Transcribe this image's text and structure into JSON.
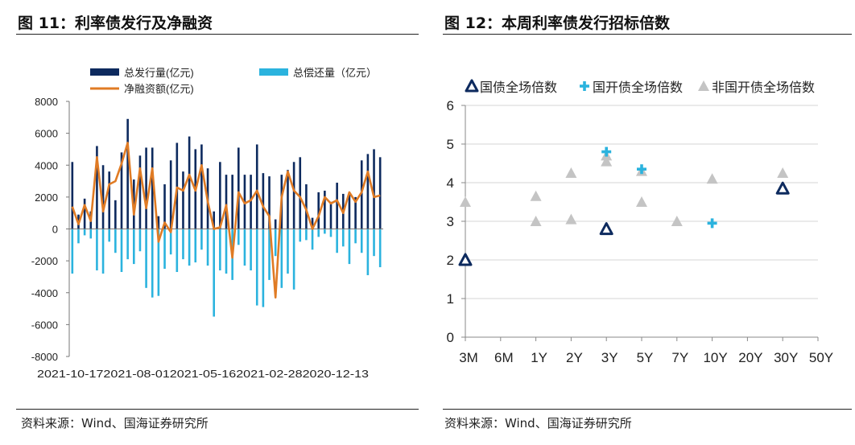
{
  "left": {
    "title": "图 11：利率债发行及净融资",
    "source": "资料来源：Wind、国海证券研究所",
    "chart_data": {
      "type": "bar",
      "ylim": [
        -8000,
        8000
      ],
      "yticks": [
        8000,
        6000,
        4000,
        2000,
        0,
        -2000,
        -4000,
        -6000,
        -8000
      ],
      "x_labels": [
        "2021-10-17",
        "2021-08-01",
        "2021-05-16",
        "2021-02-28",
        "2020-12-13"
      ],
      "series": [
        {
          "name": "总发行量(亿元)",
          "color": "#0d2a5e",
          "kind": "bar",
          "values": [
            4200,
            900,
            1900,
            1100,
            5200,
            4000,
            3600,
            1800,
            4800,
            6900,
            3100,
            4600,
            5100,
            5100,
            800,
            2800,
            4300,
            5400,
            3600,
            5800,
            5000,
            5300,
            3800,
            1100,
            4200,
            3400,
            3400,
            5100,
            3400,
            3400,
            5300,
            3500,
            3300,
            600,
            3400,
            3700,
            4200,
            4500,
            2800,
            700,
            2300,
            2400,
            1700,
            2900,
            2200,
            2300,
            2000,
            4300,
            4700,
            5000,
            4500
          ]
        },
        {
          "name": "总偿还量（亿元）",
          "color": "#2bb3de",
          "kind": "bar",
          "values": [
            -2800,
            -900,
            -400,
            -600,
            -2600,
            -2800,
            -800,
            -1500,
            -2700,
            -1900,
            -2200,
            -1400,
            -3700,
            -4300,
            -4200,
            -2500,
            -1600,
            -2700,
            -1900,
            -2300,
            -2100,
            -1300,
            -2300,
            -5500,
            -2600,
            -2800,
            -3200,
            -1000,
            -2300,
            -2600,
            -4800,
            -4900,
            -3200,
            -1700,
            -3700,
            -2800,
            -3800,
            -800,
            -700,
            -1300,
            -500,
            -300,
            -500,
            -1500,
            -1100,
            -2200,
            -900,
            -1500,
            -2900,
            -1700,
            -2400
          ]
        },
        {
          "name": "净融资额(亿元)",
          "color": "#e07b24",
          "kind": "line",
          "values": [
            1400,
            300,
            1500,
            500,
            4500,
            1100,
            2800,
            3000,
            4100,
            5400,
            900,
            3800,
            1300,
            3800,
            -800,
            400,
            -200,
            2600,
            2400,
            3400,
            2400,
            4000,
            1700,
            0,
            100,
            1500,
            -1800,
            2300,
            1600,
            1800,
            2400,
            1400,
            800,
            -4300,
            2000,
            3600,
            2400,
            2000,
            1200,
            0,
            800,
            2000,
            1600,
            1800,
            1000,
            2300,
            1700,
            2300,
            3600,
            2000,
            2100
          ]
        }
      ]
    }
  },
  "right": {
    "title": "图 12：本周利率债发行招标倍数",
    "source": "资料来源：Wind、国海证券研究所",
    "chart_data": {
      "type": "scatter",
      "ylim": [
        0,
        6
      ],
      "yticks": [
        0,
        1,
        2,
        3,
        4,
        5,
        6
      ],
      "categories": [
        "3M",
        "6M",
        "1Y",
        "2Y",
        "3Y",
        "5Y",
        "7Y",
        "10Y",
        "20Y",
        "30Y",
        "50Y"
      ],
      "series": [
        {
          "name": "国债全场倍数",
          "marker": "triangle-open",
          "color": "#0d2a5e",
          "points": [
            [
              "3M",
              2.0
            ],
            [
              "3Y",
              2.8
            ],
            [
              "30Y",
              3.85
            ]
          ]
        },
        {
          "name": "国开债全场倍数",
          "marker": "plus",
          "color": "#2bb3de",
          "points": [
            [
              "3Y",
              4.8
            ],
            [
              "5Y",
              4.35
            ],
            [
              "10Y",
              2.95
            ]
          ]
        },
        {
          "name": "非国开债全场倍数",
          "marker": "triangle",
          "color": "#c4c4c4",
          "points": [
            [
              "3M",
              3.5
            ],
            [
              "1Y",
              3.65
            ],
            [
              "1Y",
              3.0
            ],
            [
              "2Y",
              4.25
            ],
            [
              "2Y",
              3.05
            ],
            [
              "3Y",
              4.55
            ],
            [
              "3Y",
              4.7
            ],
            [
              "5Y",
              4.3
            ],
            [
              "5Y",
              3.5
            ],
            [
              "7Y",
              3.0
            ],
            [
              "10Y",
              4.1
            ],
            [
              "30Y",
              4.25
            ]
          ]
        }
      ]
    }
  }
}
